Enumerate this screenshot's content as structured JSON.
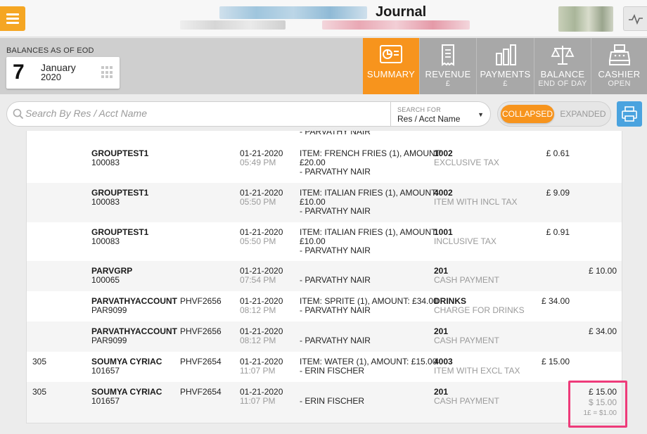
{
  "header": {
    "title": "Journal"
  },
  "balances": {
    "label": "BALANCES AS OF EOD",
    "day": "7",
    "month": "January",
    "year": "2020"
  },
  "tabs": [
    {
      "title": "SUMMARY",
      "sub": "",
      "icon": "summary-chart-icon",
      "active": true
    },
    {
      "title": "REVENUE",
      "sub": "£",
      "icon": "receipt-icon",
      "active": false
    },
    {
      "title": "PAYMENTS",
      "sub": "£",
      "icon": "bar-chart-icon",
      "active": false
    },
    {
      "title": "BALANCE",
      "sub": "END OF DAY",
      "icon": "scale-icon",
      "active": false
    },
    {
      "title": "CASHIER",
      "sub": "OPEN",
      "icon": "cash-register-icon",
      "active": false
    }
  ],
  "search": {
    "placeholder": "Search By Res / Acct Name",
    "for_label": "SEARCH FOR",
    "for_value": "Res / Acct Name"
  },
  "toggle": {
    "collapsed": "COLLAPSED",
    "expanded": "EXPANDED"
  },
  "top_partial": "- PARVATHY NAIR",
  "rows": [
    {
      "room": "",
      "name": "GROUPTEST1",
      "acct": "100083",
      "ref": "",
      "date": "01-21-2020",
      "time": "05:49 PM",
      "item1": "ITEM: FRENCH FRIES (1), AMOUNT:",
      "item2": "£20.00",
      "item3": "- PARVATHY NAIR",
      "code": "1002",
      "code_desc": "EXCLUSIVE TAX",
      "charge": "£ 0.61",
      "payment": ""
    },
    {
      "room": "",
      "name": "GROUPTEST1",
      "acct": "100083",
      "ref": "",
      "date": "01-21-2020",
      "time": "05:50 PM",
      "item1": "ITEM: ITALIAN FRIES (1), AMOUNT:",
      "item2": "£10.00",
      "item3": "- PARVATHY NAIR",
      "code": "4002",
      "code_desc": "ITEM WITH INCL TAX",
      "charge": "£ 9.09",
      "payment": ""
    },
    {
      "room": "",
      "name": "GROUPTEST1",
      "acct": "100083",
      "ref": "",
      "date": "01-21-2020",
      "time": "05:50 PM",
      "item1": "ITEM: ITALIAN FRIES (1), AMOUNT:",
      "item2": "£10.00",
      "item3": "- PARVATHY NAIR",
      "code": "1001",
      "code_desc": "INCLUSIVE TAX",
      "charge": "£ 0.91",
      "payment": ""
    },
    {
      "room": "",
      "name": "PARVGRP",
      "acct": "100065",
      "ref": "",
      "date": "01-21-2020",
      "time": "07:54 PM",
      "item1": "",
      "item2": "",
      "item3": "- PARVATHY NAIR",
      "code": "201",
      "code_desc": "CASH PAYMENT",
      "charge": "",
      "payment": "£ 10.00"
    },
    {
      "room": "",
      "name": "PARVATHYACCOUNT",
      "acct": "PAR9099",
      "ref": "PHVF2656",
      "date": "01-21-2020",
      "time": "08:12 PM",
      "item1": "ITEM: SPRITE (1), AMOUNT: £34.00",
      "item2": "- PARVATHY NAIR",
      "item3": "",
      "code": "DRINKS",
      "code_desc": "CHARGE FOR DRINKS",
      "charge": "£ 34.00",
      "payment": ""
    },
    {
      "room": "",
      "name": "PARVATHYACCOUNT",
      "acct": "PAR9099",
      "ref": "PHVF2656",
      "date": "01-21-2020",
      "time": "08:12 PM",
      "item1": "",
      "item2": "",
      "item3": "- PARVATHY NAIR",
      "code": "201",
      "code_desc": "CASH PAYMENT",
      "charge": "",
      "payment": "£ 34.00"
    },
    {
      "room": "305",
      "name": "SOUMYA CYRIAC",
      "acct": "101657",
      "ref": "PHVF2654",
      "date": "01-21-2020",
      "time": "11:07 PM",
      "item1": "ITEM: WATER (1), AMOUNT: £15.00",
      "item2": "- ERIN FISCHER",
      "item3": "",
      "code": "4003",
      "code_desc": "ITEM WITH EXCL TAX",
      "charge": "£ 15.00",
      "payment": ""
    },
    {
      "room": "305",
      "name": "SOUMYA CYRIAC",
      "acct": "101657",
      "ref": "PHVF2654",
      "date": "01-21-2020",
      "time": "11:07 PM",
      "item1": "",
      "item2": "",
      "item3": "- ERIN FISCHER",
      "code": "201",
      "code_desc": "CASH PAYMENT",
      "charge": "",
      "payment": "£ 15.00",
      "payment_alt": "$ 15.00",
      "rate": "1£ = $1.00"
    }
  ],
  "colors": {
    "accent": "#f7941d",
    "tab_inactive": "#a8a8a8",
    "highlight": "#ee3b7a",
    "print_button": "#4aa3df"
  }
}
